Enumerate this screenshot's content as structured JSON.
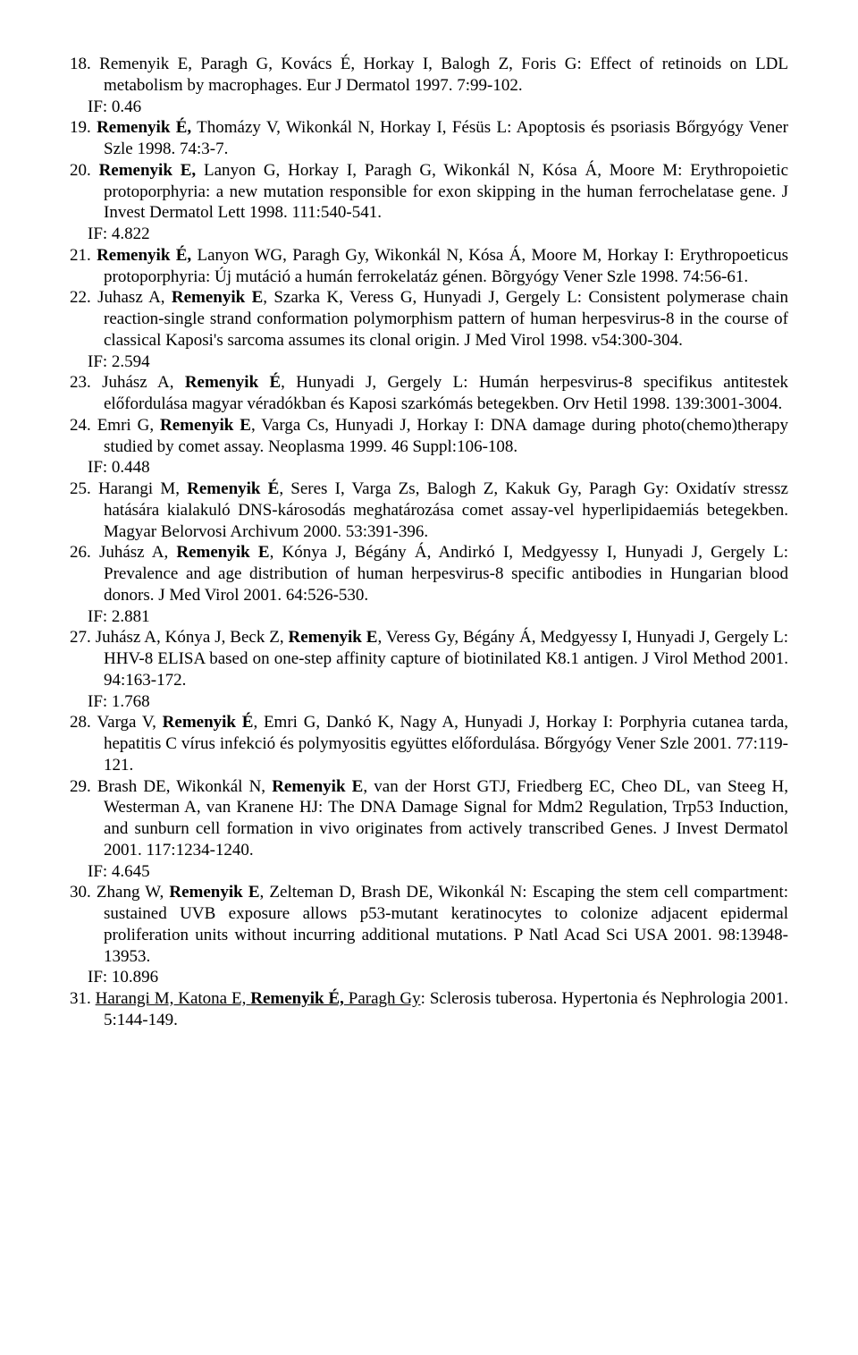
{
  "references": [
    {
      "num": "18.",
      "html": "Remenyik E, Paragh G, Kovács É, Horkay I, Balogh Z, Foris G: Effect of retinoids on LDL metabolism by macrophages. Eur J Dermatol 1997. 7:99-102.",
      "if": "IF: 0.46"
    },
    {
      "num": "19.",
      "html": "<b>Remenyik É,</b> Thomázy V, Wikonkál N, Horkay I, Fésüs L: Apoptosis és psoriasis Bőrgyógy Vener Szle 1998. 74:3-7."
    },
    {
      "num": "20.",
      "html": "<b>Remenyik E,</b> Lanyon G, Horkay I, Paragh G, Wikonkál N, Kósa Á, Moore M: Erythropoietic protoporphyria: a new mutation responsible for exon skipping in the human ferrochelatase gene. J Invest Dermatol Lett 1998. 111:540-541.",
      "if": "IF: 4.822"
    },
    {
      "num": "21.",
      "html": "<b>Remenyik É,</b> Lanyon WG, Paragh Gy, Wikonkál N, Kósa Á, Moore M, Horkay I: Erythropoeticus protoporphyria: Új mutáció a humán ferrokelatáz génen. Bõrgyógy Vener Szle 1998. 74:56-61."
    },
    {
      "num": "22.",
      "html": "Juhasz A, <b>Remenyik E</b>, Szarka K, Veress G, Hunyadi J, Gergely L: Consistent polymerase chain reaction-single strand conformation polymorphism pattern of human herpesvirus-8 in the course of classical Kaposi's sarcoma assumes its clonal origin. J Med Virol 1998. v54:300-304.",
      "if": "IF: 2.594"
    },
    {
      "num": "23.",
      "html": "Juhász A, <b>Remenyik É</b>, Hunyadi J, Gergely L: Humán herpesvirus-8 specifikus antitestek előfordulása magyar véradókban és Kaposi szarkómás betegekben. Orv Hetil 1998. 139:3001-3004."
    },
    {
      "num": "24.",
      "html": "Emri G, <b>Remenyik E</b>, Varga Cs, Hunyadi J, Horkay I: DNA damage during photo(chemo)therapy studied by comet assay. Neoplasma 1999. 46 Suppl:106-108.",
      "if": "IF: 0.448"
    },
    {
      "num": "25.",
      "html": "Harangi M, <b>Remenyik É</b>, Seres I, Varga Zs, Balogh Z, Kakuk Gy, Paragh Gy: Oxidatív stressz hatására kialakuló DNS-károsodás meghatározása comet assay-vel hyperlipidaemiás betegekben. Magyar Belorvosi Archivum 2000. 53:391-396."
    },
    {
      "num": "26.",
      "html": "Juhász A, <b>Remenyik E</b>, Kónya J, Bégány Á, Andirkó I, Medgyessy I, Hunyadi J, Gergely L: Prevalence and age distribution of human herpesvirus-8 specific antibodies in Hungarian blood donors. J Med Virol 2001. 64:526-530.",
      "if": "IF: 2.881"
    },
    {
      "num": "27.",
      "html": "Juhász A, Kónya J, Beck Z, <b>Remenyik E</b>, Veress Gy, Bégány Á, Medgyessy I, Hunyadi J, Gergely L: HHV-8 ELISA based on one-step affinity capture of biotinilated K8.1 antigen. J Virol Method 2001. 94:163-172.",
      "if": "IF: 1.768"
    },
    {
      "num": "28.",
      "html": "Varga V, <b>Remenyik É</b>, Emri G, Dankó K, Nagy A, Hunyadi J, Horkay I: Porphyria cutanea tarda, hepatitis C vírus infekció és polymyositis együttes előfordulása. Bőrgyógy Vener Szle 2001. 77:119-121."
    },
    {
      "num": "29.",
      "html": "Brash DE, Wikonkál N, <b>Remenyik E</b>, van der Horst GTJ, Friedberg EC, Cheo DL, van Steeg H, Westerman A, van Kranene HJ: The DNA Damage Signal for Mdm2 Regulation, Trp53 Induction, and sunburn cell formation in vivo originates from actively transcribed Genes. J Invest Dermatol 2001. 117:1234-1240.",
      "if": "IF: 4.645"
    },
    {
      "num": "30.",
      "html": "Zhang W, <b>Remenyik E</b>, Zelteman D, Brash DE, Wikonkál N: Escaping the stem cell compartment: sustained UVB exposure allows p53-mutant keratinocytes to colonize adjacent epidermal proliferation units without incurring additional mutations. P Natl Acad Sci USA 2001. 98:13948-13953.",
      "if": "IF: 10.896"
    },
    {
      "num": "31.",
      "html": "<span class=\"underline\">Harangi M, Katona E, <b>Remenyik É,</b> Paragh Gy</span>: Sclerosis tuberosa. Hypertonia és Nephrologia 2001. 5:144-149."
    }
  ]
}
